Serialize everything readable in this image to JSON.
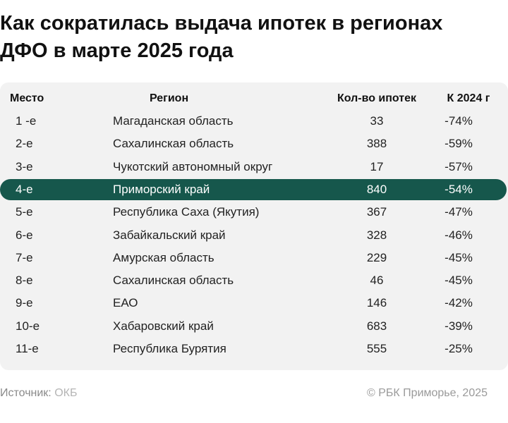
{
  "title_line1": "Как сократилась выдача ипотек в регионах",
  "title_line2": "ДФО в марте 2025 года",
  "colors": {
    "highlight": "#16574c",
    "card": "#f2f2f2",
    "text": "#222222"
  },
  "chart_data": {
    "type": "table",
    "title": "Как сократилась выдача ипотек в регионах ДФО в марте 2025 года",
    "columns": [
      "Место",
      "Регион",
      "Кол-во ипотек",
      "К 2024 г"
    ],
    "rows": [
      [
        "1 -е",
        "Магаданская область",
        "33",
        "-74%"
      ],
      [
        "2-е",
        "Сахалинская область",
        "388",
        "-59%"
      ],
      [
        "3-е",
        "Чукотский автономный округ",
        "17",
        "-57%"
      ],
      [
        "4-е",
        "Приморский край",
        "840",
        "-54%"
      ],
      [
        "5-е",
        "Республика Саха (Якутия)",
        "367",
        "-47%"
      ],
      [
        "6-е",
        "Забайкальский край",
        "328",
        "-46%"
      ],
      [
        "7-е",
        "Амурская область",
        "229",
        "-45%"
      ],
      [
        "8-е",
        "Сахалинская область",
        "46",
        "-45%"
      ],
      [
        "9-е",
        "ЕАО",
        "146",
        "-42%"
      ],
      [
        "10-е",
        "Хабаровский край",
        "683",
        "-39%"
      ],
      [
        "11-е",
        "Республика Бурятия",
        "555",
        "-25%"
      ]
    ],
    "highlight_row": 3
  },
  "footer": {
    "source_label": "Источник:",
    "source_value": "ОКБ",
    "copyright": "© РБК Приморье, 2025"
  }
}
